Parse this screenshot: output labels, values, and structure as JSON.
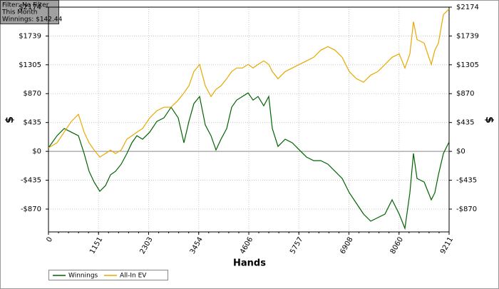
{
  "info_box": {
    "lines": [
      "Filter: No Filter",
      "This Month",
      "Winnings: $142.44"
    ]
  },
  "chart_data": {
    "type": "line",
    "x_label": "Hands",
    "y_label": "$",
    "y2_label": "$",
    "x": [
      0,
      197,
      361,
      524,
      688,
      820,
      934,
      1049,
      1180,
      1311,
      1426,
      1541,
      1672,
      1803,
      1918,
      2032,
      2163,
      2327,
      2491,
      2655,
      2819,
      2983,
      3114,
      3229,
      3344,
      3475,
      3606,
      3737,
      3852,
      3966,
      4098,
      4212,
      4327,
      4458,
      4589,
      4704,
      4819,
      4950,
      5065,
      5146,
      5278,
      5441,
      5605,
      5769,
      5933,
      6097,
      6261,
      6425,
      6589,
      6753,
      6917,
      7080,
      7244,
      7408,
      7572,
      7736,
      7900,
      8064,
      8195,
      8310,
      8392,
      8474,
      8638,
      8801,
      8883,
      8965,
      9080,
      9211
    ],
    "series": [
      {
        "name": "Winnings",
        "color": "#006400",
        "values": [
          54,
          236,
          344,
          290,
          236,
          -32,
          -301,
          -462,
          -601,
          -516,
          -354,
          -301,
          -193,
          -32,
          129,
          236,
          183,
          290,
          451,
          505,
          666,
          505,
          129,
          451,
          720,
          827,
          397,
          236,
          21,
          183,
          344,
          666,
          773,
          827,
          881,
          773,
          827,
          687,
          827,
          344,
          75,
          183,
          129,
          21,
          -86,
          -140,
          -140,
          -193,
          -301,
          -408,
          -623,
          -784,
          -945,
          -1052,
          -999,
          -945,
          -730,
          -945,
          -1160,
          -623,
          -32,
          -408,
          -462,
          -730,
          -623,
          -354,
          -32,
          142
        ]
      },
      {
        "name": "All-In EV",
        "color": "#e8a800",
        "values": [
          54,
          129,
          290,
          451,
          558,
          290,
          129,
          21,
          -86,
          -32,
          21,
          -32,
          21,
          183,
          236,
          290,
          344,
          505,
          612,
          666,
          666,
          773,
          881,
          988,
          1203,
          1310,
          988,
          827,
          934,
          988,
          1095,
          1203,
          1257,
          1257,
          1310,
          1257,
          1310,
          1364,
          1310,
          1203,
          1095,
          1203,
          1257,
          1310,
          1364,
          1418,
          1525,
          1579,
          1525,
          1418,
          1203,
          1095,
          1042,
          1149,
          1203,
          1310,
          1418,
          1471,
          1257,
          1471,
          1955,
          1686,
          1632,
          1310,
          1525,
          1632,
          2062,
          2148
        ]
      }
    ],
    "xlim": [
      0,
      9211
    ],
    "xticks": [
      0,
      1151,
      2303,
      3454,
      4606,
      5757,
      6908,
      8060,
      9211
    ],
    "ylim": [
      -1214,
      2174
    ],
    "yticks": [
      {
        "value": -870,
        "label": "-$870"
      },
      {
        "value": -435,
        "label": "-$435"
      },
      {
        "value": 0,
        "label": "$0"
      },
      {
        "value": 435,
        "label": "$435"
      },
      {
        "value": 870,
        "label": "$870"
      },
      {
        "value": 1305,
        "label": "$1305"
      },
      {
        "value": 1739,
        "label": "$1739"
      },
      {
        "value": 2174,
        "label": "$2174"
      }
    ],
    "grid": true,
    "legend": "bottom-left"
  }
}
